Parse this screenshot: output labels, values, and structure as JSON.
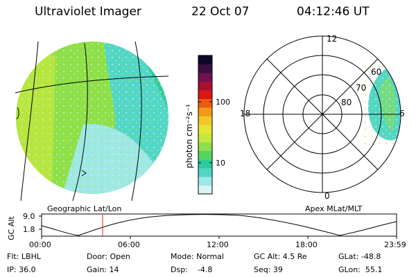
{
  "header": {
    "instrument": "Ultraviolet Imager",
    "date": "22 Oct 07",
    "time": "04:12:46 UT"
  },
  "colorbar": {
    "unit_label": "photon cm⁻²s⁻¹",
    "ticks": [
      "100",
      "10"
    ],
    "colors": [
      "#d8f4f4",
      "#9ee8e6",
      "#52d6c8",
      "#2ecc9a",
      "#59d35e",
      "#8ee04a",
      "#c4e83e",
      "#e8e436",
      "#f2c828",
      "#f29a18",
      "#ee5a10",
      "#d81818",
      "#a81030",
      "#701050",
      "#381040",
      "#10082a"
    ]
  },
  "earth_view": {
    "projection_label": "Geographic Lat/Lon"
  },
  "polar_view": {
    "projection_label": "Apex MLat/MLT",
    "mlt_labels": {
      "top": "12",
      "left": "18",
      "right": "6",
      "bottom": "0"
    },
    "lat_labels": [
      "80",
      "70",
      "60"
    ]
  },
  "altitude_plot": {
    "ylabel": "GC Alt",
    "yticks": [
      "9.0",
      "1.8"
    ],
    "xticks": [
      "00:00",
      "06:00",
      "12:00",
      "18:00",
      "23:59"
    ],
    "marker_color": "#cc2222"
  },
  "status": {
    "flt": "Flt: LBHL",
    "ip": "IP: 36.0",
    "door": "Door: Open",
    "gain": "Gain: 14",
    "mode": "Mode: Normal",
    "dsp": "Dsp:    -4.8",
    "gc_alt": "GC Alt: 4.5 Re",
    "seq": "Seq: 39",
    "glat": "GLat: -48.8",
    "glon": "GLon:  55.1"
  }
}
